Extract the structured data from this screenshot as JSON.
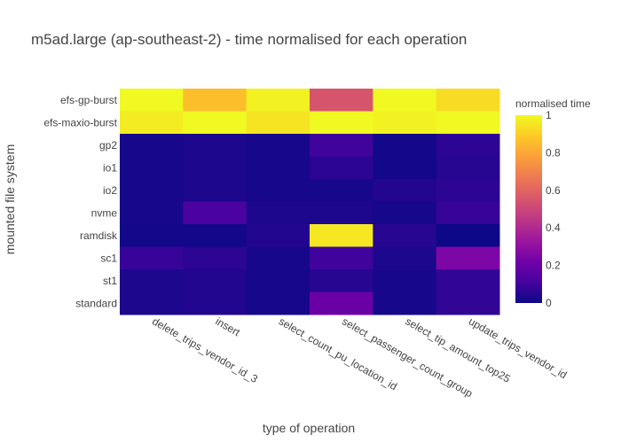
{
  "chart_data": {
    "type": "heatmap",
    "title": "m5ad.large (ap-southeast-2) - time normalised for each operation",
    "xlabel": "type of operation",
    "ylabel": "mounted file system",
    "x": [
      "delete_trips_vendor_id_3",
      "insert",
      "select_count_pu_location_id",
      "select_passenger_count_group",
      "select_tip_amount_top25",
      "update_trips_vendor_id"
    ],
    "y": [
      "efs-gp-burst",
      "efs-maxio-burst",
      "gp2",
      "io1",
      "io2",
      "nvme",
      "ramdisk",
      "sc1",
      "st1",
      "standard"
    ],
    "z": [
      [
        1.0,
        0.86,
        0.98,
        0.55,
        1.0,
        0.93
      ],
      [
        0.97,
        1.0,
        0.95,
        1.0,
        0.98,
        1.0
      ],
      [
        0.02,
        0.03,
        0.02,
        0.1,
        0.01,
        0.06
      ],
      [
        0.02,
        0.03,
        0.02,
        0.06,
        0.01,
        0.05
      ],
      [
        0.02,
        0.03,
        0.02,
        0.02,
        0.04,
        0.06
      ],
      [
        0.02,
        0.12,
        0.03,
        0.03,
        0.02,
        0.08
      ],
      [
        0.01,
        0.01,
        0.04,
        0.96,
        0.05,
        0.0
      ],
      [
        0.08,
        0.06,
        0.02,
        0.1,
        0.03,
        0.25
      ],
      [
        0.03,
        0.04,
        0.02,
        0.05,
        0.02,
        0.07
      ],
      [
        0.03,
        0.04,
        0.02,
        0.2,
        0.02,
        0.07
      ]
    ],
    "zmin": 0,
    "zmax": 1,
    "colorscale": "plasma",
    "colorbar": {
      "title": "normalised time",
      "ticks": [
        "0",
        "0.2",
        "0.4",
        "0.6",
        "0.8",
        "1"
      ],
      "tick_values": [
        0,
        0.2,
        0.4,
        0.6,
        0.8,
        1
      ]
    },
    "grid": false
  }
}
